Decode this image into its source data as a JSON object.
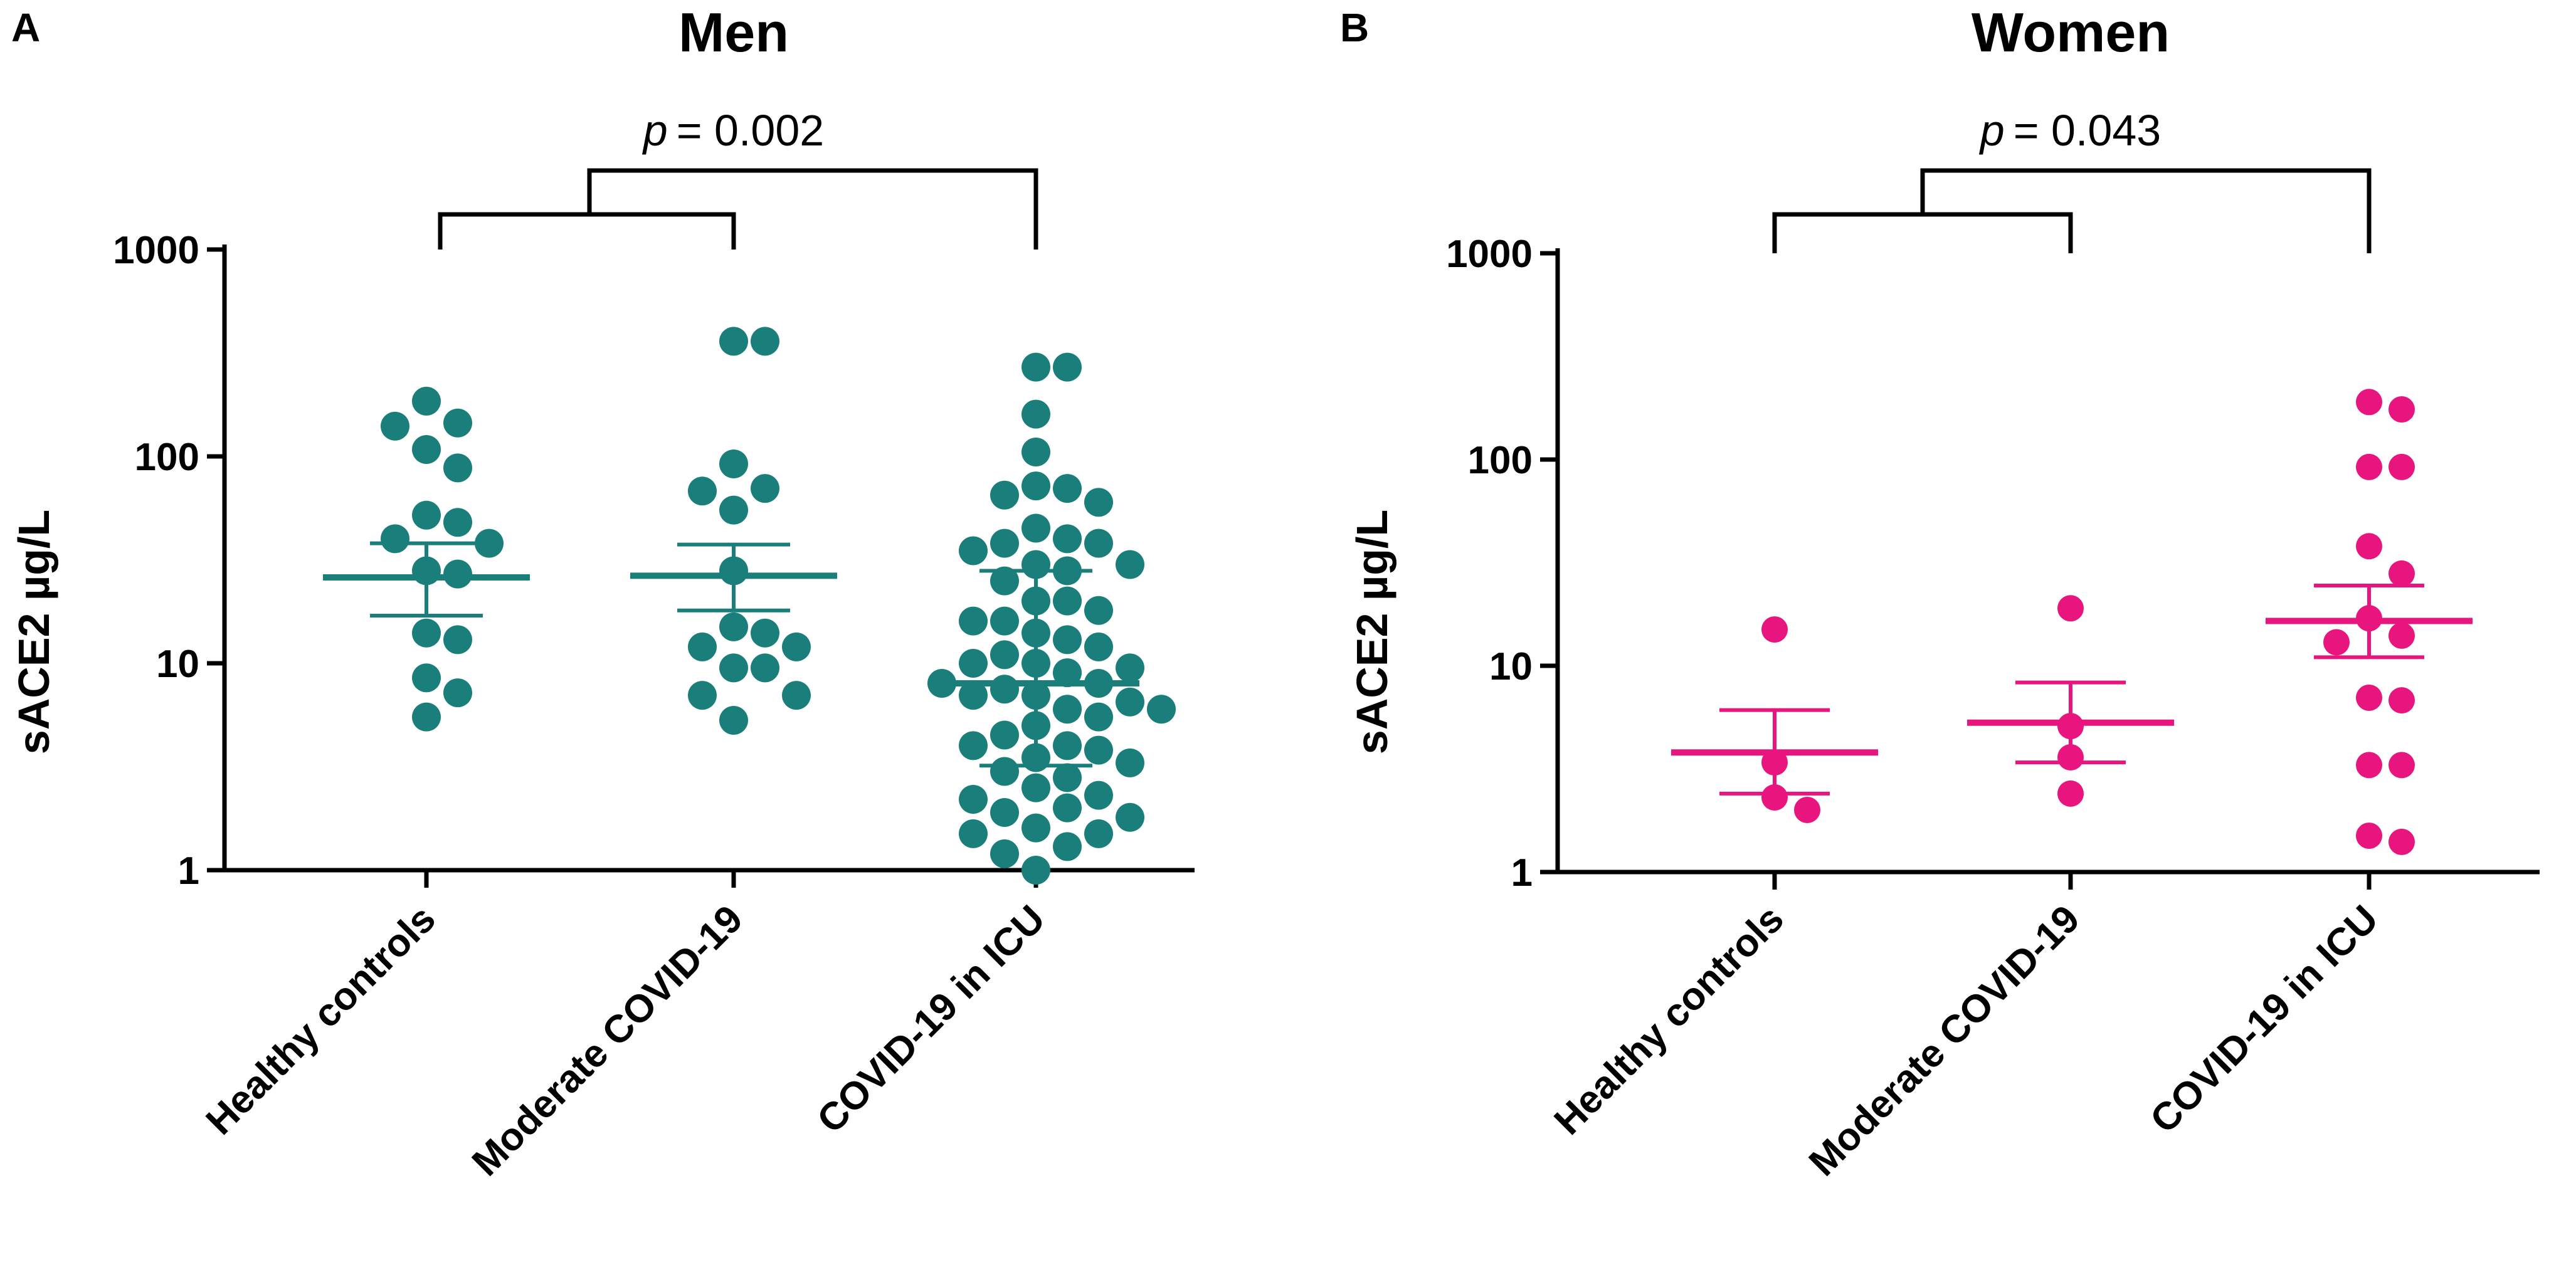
{
  "chart_data": [
    {
      "type": "scatter",
      "panel": "A",
      "title": "Men",
      "ylabel": "sACE2 µg/L",
      "xlabel": "",
      "yscale": "log",
      "ylim": [
        1,
        1000
      ],
      "yticks": [
        "1",
        "10",
        "100",
        "1000"
      ],
      "categories": [
        "Healthy controls",
        "Moderate COVID-19",
        "COVID-19 in ICU"
      ],
      "color": "#1a7f7a",
      "annotation": {
        "p_label": "p",
        "p_value": "= 0.002"
      },
      "groups": [
        {
          "name": "Healthy controls",
          "mean": 26,
          "upper": 38,
          "lower": 17,
          "points": [
            185,
            145,
            140,
            108,
            88,
            52,
            48,
            40,
            38,
            28,
            27,
            14,
            13,
            8.5,
            7.2,
            5.5
          ]
        },
        {
          "name": "Moderate COVID-19",
          "mean": 26.5,
          "upper": 37.5,
          "lower": 18,
          "points": [
            360,
            360,
            92,
            70,
            68,
            55,
            28,
            15,
            14,
            12,
            12,
            9.5,
            9.5,
            7,
            7,
            5.3
          ]
        },
        {
          "name": "COVID-19 in ICU",
          "mean": 8,
          "upper": 28,
          "lower": 3.2,
          "points": [
            270,
            270,
            160,
            105,
            72,
            70,
            65,
            60,
            45,
            40,
            38,
            38,
            35,
            30,
            30,
            28,
            25,
            20,
            20,
            18,
            16,
            16,
            14,
            13,
            12,
            11,
            10,
            10,
            9.5,
            9,
            8,
            8,
            7.5,
            7,
            7,
            6.5,
            6,
            6,
            5.5,
            5,
            4.5,
            4,
            4,
            3.8,
            3.5,
            3.3,
            3,
            2.8,
            2.5,
            2.3,
            2.2,
            2,
            1.9,
            1.8,
            1.6,
            1.5,
            1.5,
            1.3,
            1.2,
            1
          ]
        }
      ]
    },
    {
      "type": "scatter",
      "panel": "B",
      "title": "Women",
      "ylabel": "sACE2 µg/L",
      "xlabel": "",
      "yscale": "log",
      "ylim": [
        1,
        1000
      ],
      "yticks": [
        "1",
        "10",
        "100",
        "1000"
      ],
      "categories": [
        "Healthy controls",
        "Moderate COVID-19",
        "COVID-19 in ICU"
      ],
      "color": "#e8157f",
      "annotation": {
        "p_label": "p",
        "p_value": "= 0.043"
      },
      "groups": [
        {
          "name": "Healthy controls",
          "mean": 3.8,
          "upper": 6.1,
          "lower": 2.4,
          "points": [
            15,
            3.4,
            2.3,
            2.0
          ]
        },
        {
          "name": "Moderate COVID-19",
          "mean": 5.3,
          "upper": 8.3,
          "lower": 3.4,
          "points": [
            19,
            5.1,
            3.6,
            2.4
          ]
        },
        {
          "name": "COVID-19 in ICU",
          "mean": 16.5,
          "upper": 24.5,
          "lower": 11,
          "points": [
            190,
            175,
            92,
            92,
            38,
            28,
            17,
            14,
            13,
            7,
            6.8,
            3.3,
            3.3,
            1.5,
            1.4
          ]
        }
      ]
    }
  ]
}
